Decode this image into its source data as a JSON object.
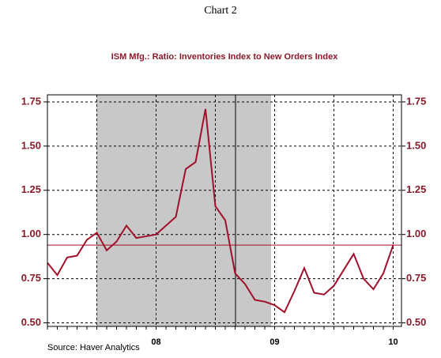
{
  "chart_data": {
    "type": "line",
    "title": "Chart 2",
    "subtitle": "ISM Mfg.: Ratio: Inventories Index to New Orders Index",
    "source": "Source: Haver Analytics",
    "categories": [
      null,
      null,
      null,
      null,
      null,
      null,
      null,
      null,
      null,
      null,
      null,
      "08",
      null,
      null,
      null,
      null,
      null,
      null,
      null,
      null,
      null,
      null,
      null,
      "09",
      null,
      null,
      null,
      null,
      null,
      null,
      null,
      null,
      null,
      null,
      null,
      "10"
    ],
    "series": [
      {
        "name": "Ratio: Inventories Index to New Orders Index",
        "color": "#a0102a",
        "values": [
          0.84,
          0.77,
          0.87,
          0.88,
          0.97,
          1.01,
          0.91,
          0.96,
          1.05,
          0.98,
          0.99,
          1.0,
          1.05,
          1.1,
          1.37,
          1.41,
          1.71,
          1.16,
          1.08,
          0.78,
          0.72,
          0.63,
          0.62,
          0.6,
          0.56,
          0.68,
          0.81,
          0.67,
          0.66,
          0.71,
          0.8,
          0.89,
          0.75,
          0.69,
          0.78,
          0.94
        ]
      }
    ],
    "reference_line": 0.94,
    "ylim": [
      0.48,
      1.79
    ],
    "yticks": [
      {
        "value": 0.5,
        "label": "0.50"
      },
      0.75,
      {
        "value": 1.0,
        "label": "1.00"
      },
      1.25,
      {
        "value": 1.5,
        "label": "1.50"
      },
      1.75
    ],
    "y2lim": [
      0.48,
      1.79
    ],
    "y2ticks": [
      {
        "value": 0.5,
        "label": "0.50"
      },
      0.75,
      {
        "value": 1.0,
        "label": "1.00"
      },
      1.25,
      {
        "value": 1.5,
        "label": "1.50"
      },
      1.75
    ],
    "grid": true
  }
}
